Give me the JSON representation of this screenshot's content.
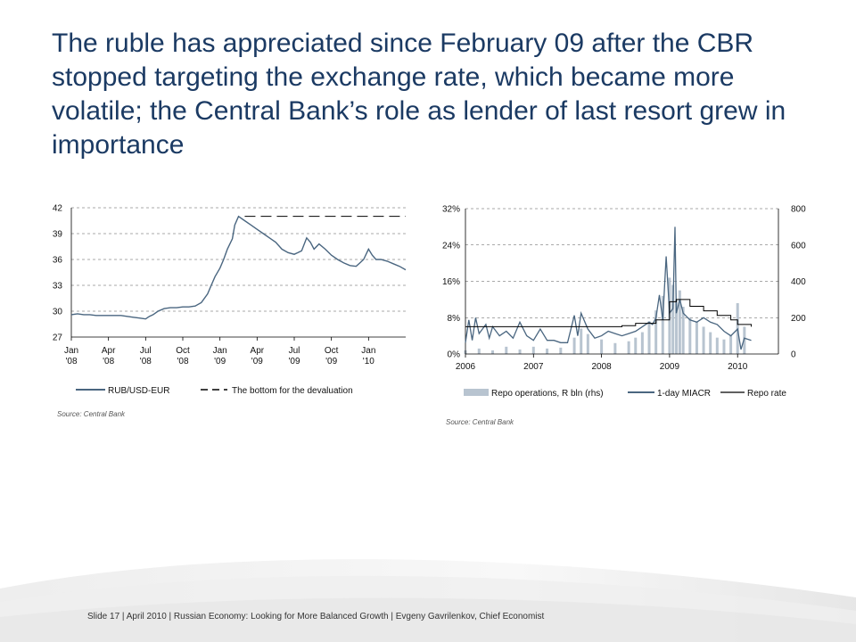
{
  "slide": {
    "title": "The ruble has appreciated since February 09 after the CBR stopped targeting the exchange rate, which became more volatile; the Central Bank’s role as lender of last resort grew in importance",
    "footer": "Slide 17  | April 2010 | Russian Economy: Looking for More Balanced Growth | Evgeny Gavrilenkov, Chief Economist"
  },
  "chart_data": [
    {
      "type": "line",
      "title": "",
      "source": "Source: Central Bank",
      "x_tick_labels": [
        [
          "Jan",
          "'08"
        ],
        [
          "Apr",
          "'08"
        ],
        [
          "Jul",
          "'08"
        ],
        [
          "Oct",
          "'08"
        ],
        [
          "Jan",
          "'09"
        ],
        [
          "Apr",
          "'09"
        ],
        [
          "Jul",
          "'09"
        ],
        [
          "Oct",
          "'09"
        ],
        [
          "Jan",
          "'10"
        ]
      ],
      "x_tick_months": [
        0,
        3,
        6,
        9,
        12,
        15,
        18,
        21,
        24
      ],
      "xlim": [
        0,
        27
      ],
      "y_ticks": [
        "27",
        "30",
        "33",
        "36",
        "39",
        "42"
      ],
      "ylim": [
        27,
        42
      ],
      "grid": "horizontal dashed",
      "legend_position": "bottom",
      "colors": {
        "series": "#4a6680",
        "bottom": "#000000"
      },
      "series": [
        {
          "name": "RUB/USD-EUR",
          "style": "solid",
          "x": [
            0,
            0.5,
            1,
            1.5,
            2,
            2.5,
            3,
            3.5,
            4,
            4.5,
            5,
            5.5,
            6,
            6.3,
            6.6,
            7,
            7.5,
            8,
            8.5,
            9,
            9.5,
            10,
            10.5,
            11,
            11.3,
            11.6,
            12,
            12.3,
            12.6,
            13,
            13.2,
            13.5,
            14,
            14.5,
            15,
            15.5,
            16,
            16.5,
            17,
            17.5,
            18,
            18.3,
            18.6,
            19,
            19.3,
            19.6,
            20,
            20.5,
            21,
            21.5,
            22,
            22.5,
            23,
            23.3,
            23.6,
            24,
            24.3,
            24.6,
            25,
            25.5,
            26,
            26.5,
            27
          ],
          "y": [
            29.6,
            29.7,
            29.6,
            29.6,
            29.5,
            29.5,
            29.5,
            29.5,
            29.5,
            29.4,
            29.3,
            29.2,
            29.1,
            29.4,
            29.6,
            30.0,
            30.3,
            30.4,
            30.4,
            30.5,
            30.5,
            30.6,
            31.0,
            32.0,
            33.0,
            34.0,
            35.0,
            36.0,
            37.2,
            38.4,
            40.0,
            41.0,
            40.5,
            40.0,
            39.5,
            39.0,
            38.5,
            38.0,
            37.2,
            36.8,
            36.6,
            36.8,
            37.0,
            38.5,
            38.0,
            37.2,
            37.8,
            37.2,
            36.5,
            36.0,
            35.6,
            35.3,
            35.2,
            35.6,
            36.0,
            37.2,
            36.5,
            36.0,
            36.0,
            35.8,
            35.5,
            35.2,
            34.8
          ]
        },
        {
          "name": "The bottom for the devaluation",
          "style": "dashed",
          "x": [
            14,
            27
          ],
          "y": [
            41,
            41
          ]
        }
      ]
    },
    {
      "type": "bar+line",
      "title": "",
      "source": "Source: Central Bank",
      "x_tick_labels": [
        "2006",
        "2007",
        "2008",
        "2009",
        "2010"
      ],
      "x_tick_values": [
        2006,
        2007,
        2008,
        2009,
        2010
      ],
      "xlim": [
        2006,
        2010.6
      ],
      "y_left_ticks": [
        "0%",
        "8%",
        "16%",
        "24%",
        "32%"
      ],
      "ylim_left": [
        0,
        32
      ],
      "y_right_ticks": [
        "0",
        "200",
        "400",
        "600",
        "800"
      ],
      "ylim_right": [
        0,
        800
      ],
      "grid": "horizontal dashed",
      "legend_position": "bottom",
      "colors": {
        "repo_ops": "#b8c4d0",
        "miacr": "#4a6680",
        "repo_rate": "#000000"
      },
      "series": [
        {
          "name": "Repo operations, R bln (rhs)",
          "axis": "right",
          "kind": "bar",
          "x": [
            2006.0,
            2006.2,
            2006.4,
            2006.6,
            2006.8,
            2007.0,
            2007.2,
            2007.4,
            2007.6,
            2007.7,
            2007.8,
            2008.0,
            2008.2,
            2008.4,
            2008.5,
            2008.6,
            2008.7,
            2008.8,
            2008.9,
            2009.0,
            2009.05,
            2009.1,
            2009.15,
            2009.2,
            2009.3,
            2009.4,
            2009.5,
            2009.6,
            2009.7,
            2009.8,
            2009.9,
            2010.0,
            2010.1
          ],
          "y": [
            20,
            30,
            20,
            40,
            25,
            40,
            30,
            35,
            90,
            140,
            110,
            80,
            60,
            70,
            90,
            120,
            180,
            240,
            320,
            420,
            380,
            300,
            350,
            260,
            200,
            180,
            150,
            120,
            90,
            80,
            100,
            280,
            150
          ]
        },
        {
          "name": "1-day MIACR",
          "axis": "left",
          "kind": "line",
          "x": [
            2006.0,
            2006.05,
            2006.1,
            2006.15,
            2006.2,
            2006.3,
            2006.35,
            2006.4,
            2006.5,
            2006.6,
            2006.7,
            2006.8,
            2006.9,
            2007.0,
            2007.1,
            2007.2,
            2007.3,
            2007.4,
            2007.5,
            2007.6,
            2007.65,
            2007.7,
            2007.8,
            2007.9,
            2008.0,
            2008.1,
            2008.2,
            2008.3,
            2008.4,
            2008.5,
            2008.6,
            2008.7,
            2008.75,
            2008.8,
            2008.85,
            2008.9,
            2008.95,
            2009.0,
            2009.05,
            2009.08,
            2009.1,
            2009.15,
            2009.2,
            2009.3,
            2009.4,
            2009.5,
            2009.6,
            2009.7,
            2009.8,
            2009.9,
            2010.0,
            2010.05,
            2010.1,
            2010.2
          ],
          "y": [
            2.5,
            7.5,
            3.0,
            8.0,
            4.5,
            6.5,
            3.5,
            6.0,
            4.0,
            5.0,
            3.5,
            7.0,
            4.0,
            3.0,
            5.5,
            3.0,
            3.0,
            2.5,
            2.5,
            8.5,
            4.0,
            9.0,
            5.5,
            3.5,
            4.0,
            5.0,
            4.5,
            4.0,
            4.5,
            5.0,
            6.0,
            7.0,
            6.5,
            8.0,
            13.0,
            7.5,
            21.5,
            9.0,
            10.0,
            28.0,
            9.0,
            12.0,
            9.0,
            7.5,
            7.0,
            8.0,
            7.0,
            6.5,
            5.0,
            4.0,
            5.5,
            1.0,
            3.5,
            3.0
          ]
        },
        {
          "name": "Repo rate",
          "axis": "left",
          "kind": "line",
          "x": [
            2006.0,
            2007.0,
            2007.65,
            2008.0,
            2008.3,
            2008.5,
            2008.8,
            2009.0,
            2009.1,
            2009.3,
            2009.5,
            2009.7,
            2009.9,
            2010.0,
            2010.2
          ],
          "y": [
            6.0,
            6.0,
            6.0,
            6.0,
            6.25,
            6.75,
            7.5,
            11.5,
            12.0,
            10.5,
            9.5,
            8.5,
            7.5,
            6.5,
            6.0
          ]
        }
      ]
    }
  ]
}
